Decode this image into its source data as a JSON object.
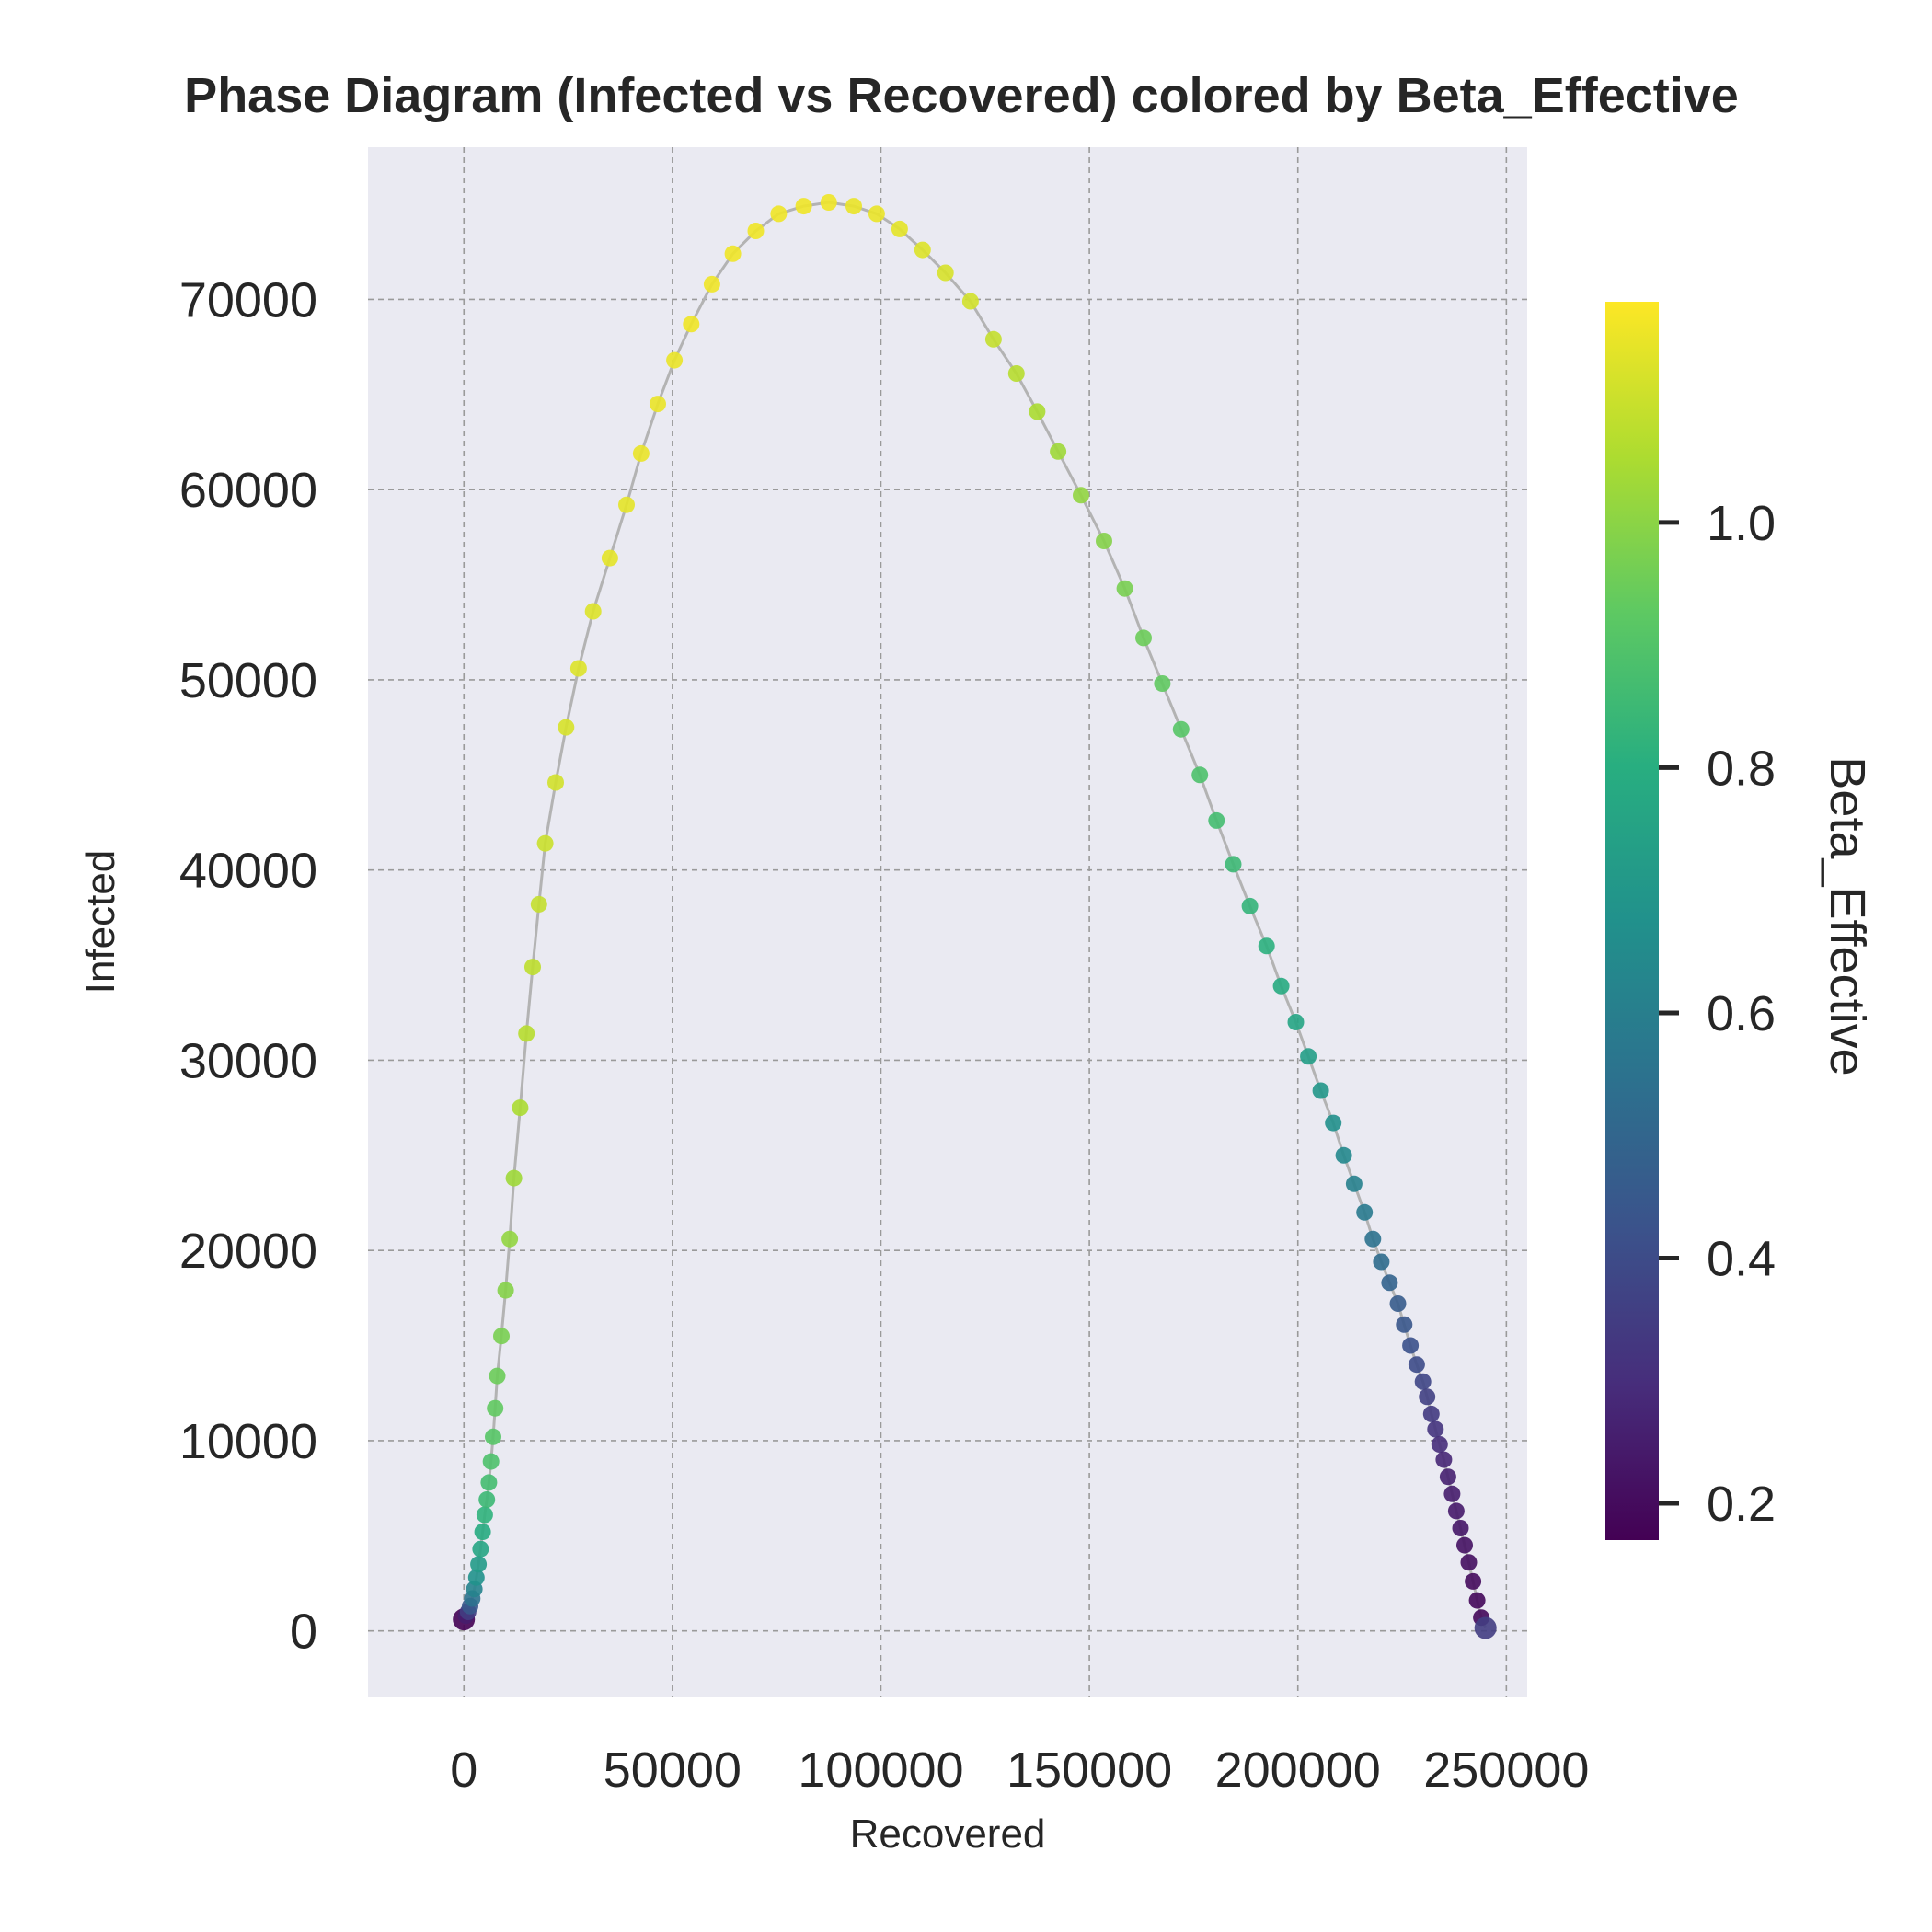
{
  "chart_data": {
    "type": "scatter",
    "title": "Phase Diagram (Infected vs Recovered) colored by Beta_Effective",
    "xlabel": "Recovered",
    "ylabel": "Infected",
    "colorbar_label": "Beta_Effective",
    "xlim": [
      -23000,
      255000
    ],
    "ylim": [
      -3500,
      78000
    ],
    "clim": [
      0.17,
      1.18
    ],
    "x_ticks": [
      0,
      50000,
      100000,
      150000,
      200000,
      250000
    ],
    "y_ticks": [
      0,
      10000,
      20000,
      30000,
      40000,
      50000,
      60000,
      70000
    ],
    "colorbar_ticks": [
      "0.2",
      "0.4",
      "0.6",
      "0.8",
      "1.0"
    ],
    "colorbar_tick_values": [
      0.2,
      0.4,
      0.6,
      0.8,
      1.0
    ],
    "colormap": "viridis",
    "grid": true,
    "background": "#eaeaf2",
    "line_color": "#b3b3b3",
    "series": [
      {
        "x": [
          0,
          500,
          1000,
          1500,
          2000,
          2500,
          3000,
          3500,
          4000,
          4500,
          5000,
          5500,
          6000,
          6500,
          7000,
          7500,
          8000,
          9000,
          10000,
          11000,
          12000,
          13500,
          15000,
          16500,
          18000,
          19500,
          22000,
          24500,
          27500,
          31000,
          35000,
          39000,
          42500,
          46500,
          50500,
          54500,
          59500,
          64500,
          70000,
          75500,
          81500,
          87500,
          93500,
          99000,
          104500,
          110000,
          115500,
          121500,
          127000,
          132500,
          137500,
          142500,
          148000,
          153500,
          158500,
          163000,
          167500,
          172000,
          176500,
          180500,
          184500,
          188500,
          192500,
          196000,
          199500,
          202500,
          205500,
          208500,
          211000,
          213500,
          216000,
          218000,
          220000,
          222000,
          224000,
          225500,
          227000,
          228500,
          230000,
          231000,
          232000,
          233000,
          234000,
          235000,
          236000,
          237000,
          238000,
          239000,
          240000,
          241000,
          242000,
          243000,
          244000,
          245000
        ],
        "y": [
          600,
          800,
          1000,
          1300,
          1700,
          2200,
          2800,
          3500,
          4300,
          5200,
          6100,
          6900,
          7800,
          8900,
          10200,
          11700,
          13400,
          15500,
          17900,
          20600,
          23800,
          27500,
          31400,
          34900,
          38200,
          41400,
          44600,
          47500,
          50600,
          53600,
          56400,
          59200,
          61900,
          64500,
          66800,
          68700,
          70800,
          72400,
          73600,
          74500,
          74900,
          75100,
          74900,
          74500,
          73700,
          72600,
          71400,
          69900,
          67900,
          66100,
          64100,
          62000,
          59700,
          57300,
          54800,
          52200,
          49800,
          47400,
          45000,
          42600,
          40300,
          38100,
          36000,
          33900,
          32000,
          30200,
          28400,
          26700,
          25000,
          23500,
          22000,
          20600,
          19400,
          18300,
          17200,
          16100,
          15000,
          14000,
          13100,
          12300,
          11400,
          10600,
          9800,
          9000,
          8100,
          7200,
          6300,
          5400,
          4500,
          3600,
          2600,
          1600,
          700,
          150
        ],
        "c": [
          0.17,
          0.25,
          0.35,
          0.45,
          0.55,
          0.62,
          0.68,
          0.72,
          0.76,
          0.79,
          0.82,
          0.85,
          0.87,
          0.89,
          0.91,
          0.93,
          0.95,
          0.97,
          0.99,
          1.01,
          1.03,
          1.05,
          1.07,
          1.08,
          1.09,
          1.1,
          1.11,
          1.12,
          1.13,
          1.13,
          1.14,
          1.14,
          1.15,
          1.15,
          1.15,
          1.16,
          1.16,
          1.16,
          1.16,
          1.16,
          1.16,
          1.16,
          1.15,
          1.15,
          1.14,
          1.13,
          1.12,
          1.11,
          1.09,
          1.07,
          1.05,
          1.03,
          1.01,
          0.99,
          0.97,
          0.95,
          0.93,
          0.91,
          0.89,
          0.87,
          0.85,
          0.83,
          0.81,
          0.79,
          0.76,
          0.73,
          0.7,
          0.67,
          0.64,
          0.61,
          0.58,
          0.55,
          0.52,
          0.49,
          0.46,
          0.44,
          0.42,
          0.4,
          0.38,
          0.36,
          0.34,
          0.32,
          0.3,
          0.28,
          0.26,
          0.25,
          0.24,
          0.23,
          0.22,
          0.21,
          0.2,
          0.19,
          0.19,
          0.35
        ]
      }
    ]
  }
}
